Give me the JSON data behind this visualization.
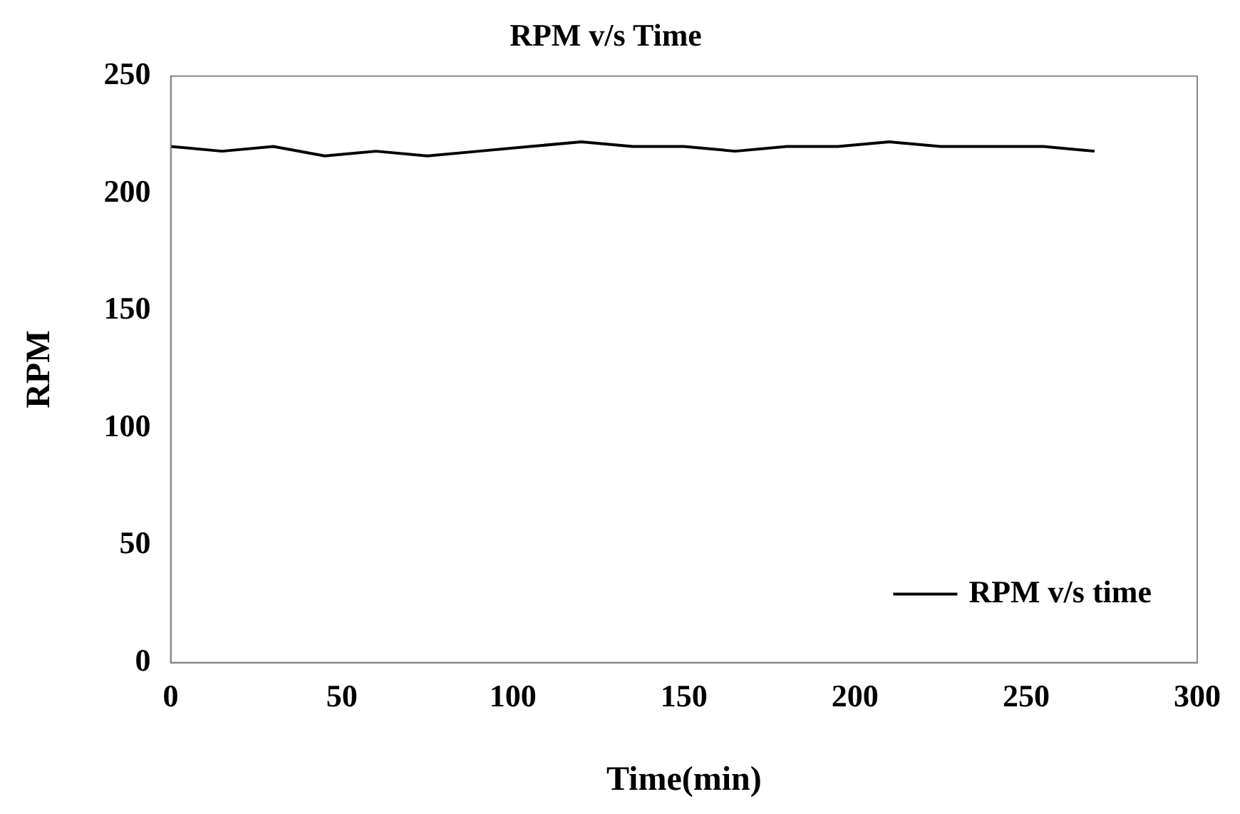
{
  "chart_data": {
    "type": "line",
    "title": "RPM v/s Time",
    "xlabel": "Time(min)",
    "ylabel": "RPM",
    "x": [
      0,
      15,
      30,
      45,
      60,
      75,
      90,
      105,
      120,
      135,
      150,
      165,
      180,
      195,
      210,
      225,
      240,
      255,
      270
    ],
    "series": [
      {
        "name": "RPM v/s time",
        "color": "#000000",
        "values": [
          220,
          218,
          220,
          216,
          218,
          216,
          218,
          220,
          222,
          220,
          220,
          218,
          220,
          220,
          222,
          220,
          220,
          220,
          218
        ]
      }
    ],
    "xlim": [
      0,
      300
    ],
    "xticks": [
      0,
      50,
      100,
      150,
      200,
      250,
      300
    ],
    "ylim": [
      0,
      250
    ],
    "yticks": [
      0,
      50,
      100,
      150,
      200,
      250
    ],
    "grid": false,
    "legend": "bottom right",
    "marker": "none",
    "line_style": "solid"
  }
}
